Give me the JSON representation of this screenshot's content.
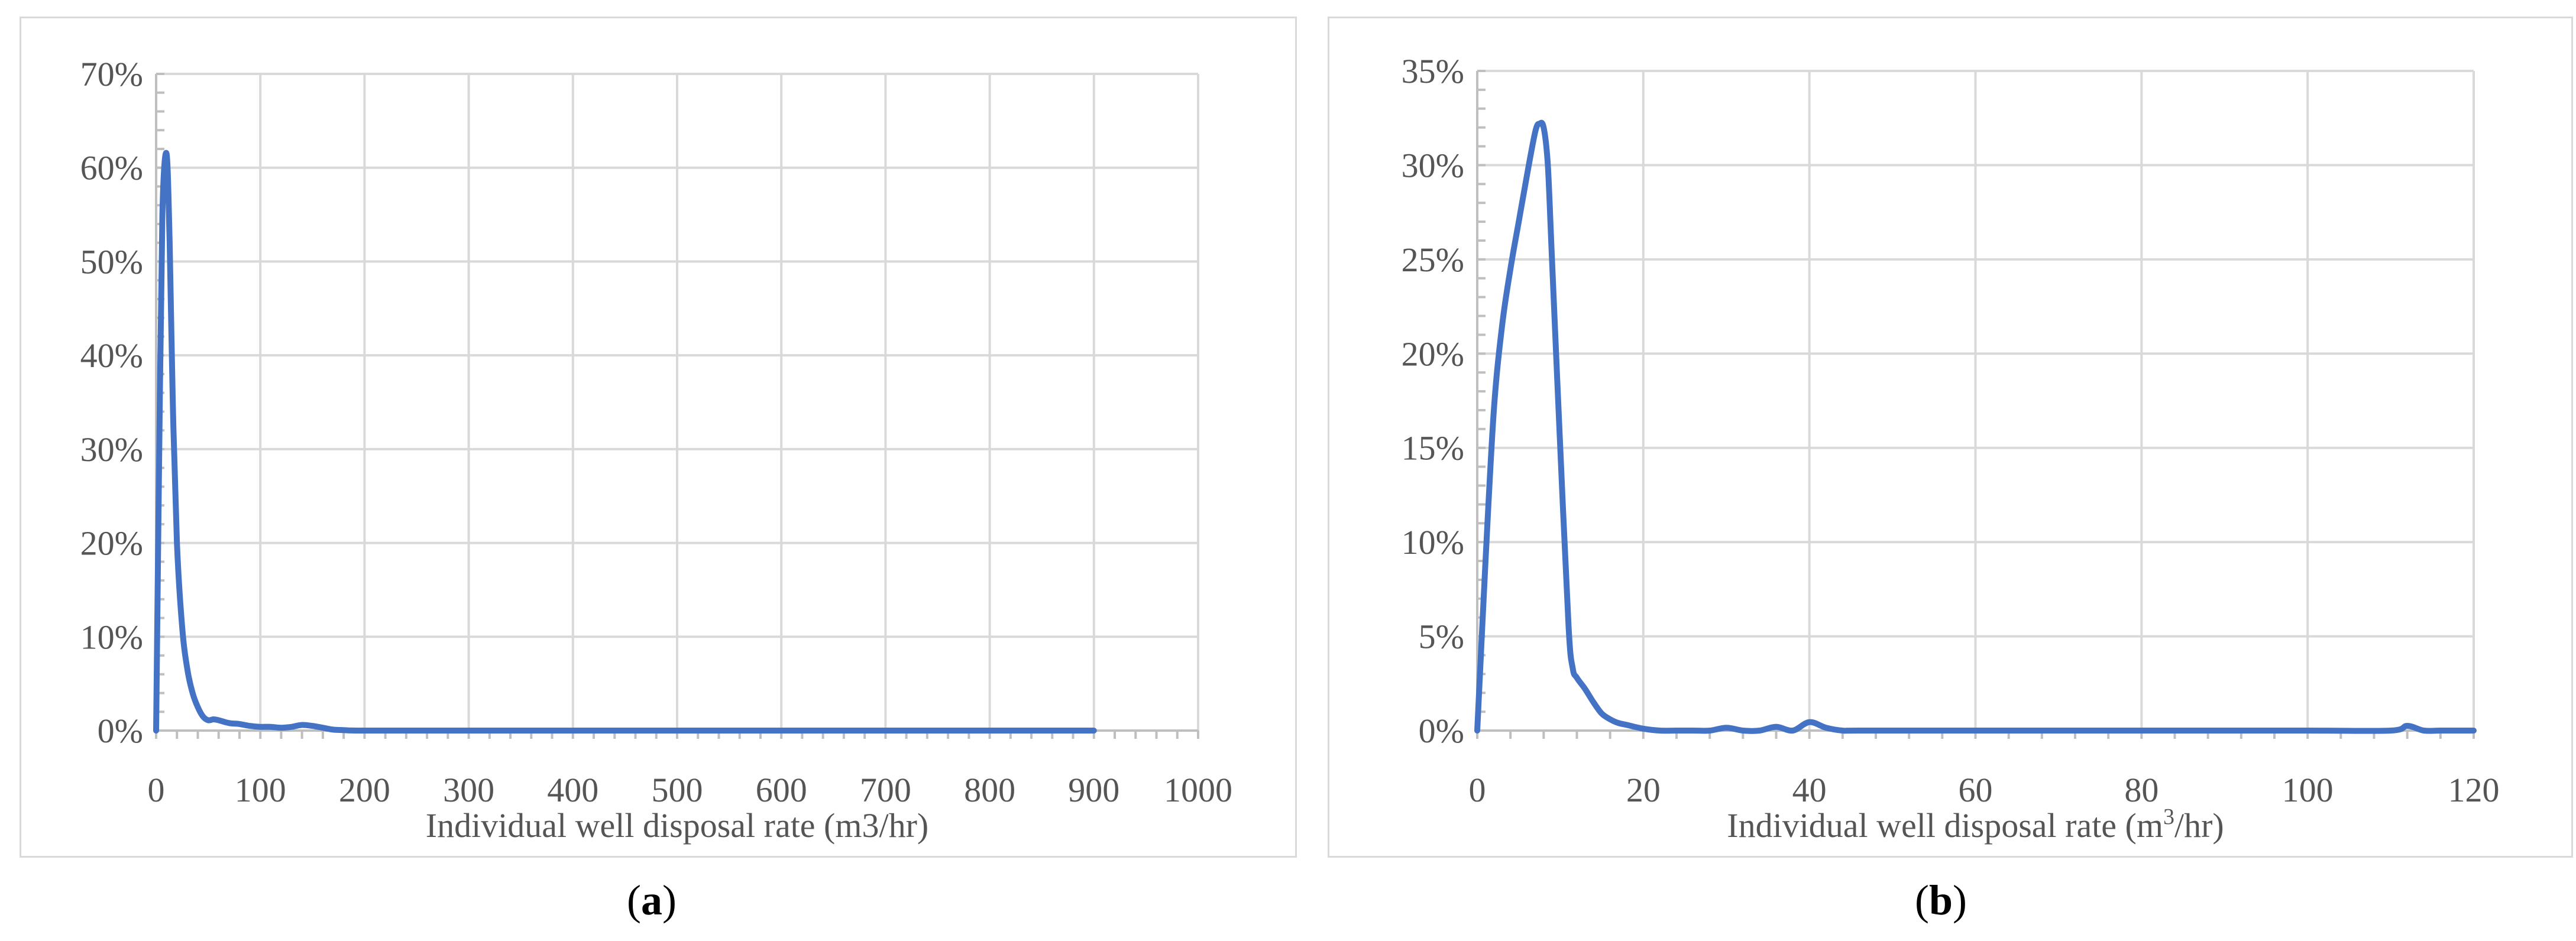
{
  "captions": [
    {
      "open": "(",
      "letter": "a",
      "close": ")"
    },
    {
      "open": "(",
      "letter": "b",
      "close": ")"
    }
  ],
  "chart_data": [
    {
      "type": "line",
      "title": "",
      "xlabel": "Individual well disposal rate (m3/hr)",
      "ylabel": "",
      "xlim": [
        0,
        1000
      ],
      "ylim": [
        0,
        0.7
      ],
      "x_ticks": [
        "0",
        "100",
        "200",
        "300",
        "400",
        "500",
        "600",
        "700",
        "800",
        "900",
        "1000"
      ],
      "y_ticks": [
        "0%",
        "10%",
        "20%",
        "30%",
        "40%",
        "50%",
        "60%",
        "70%"
      ],
      "grid": true,
      "line_color": "#4472c4",
      "series": [
        {
          "x": [
            0,
            3,
            6,
            10,
            13,
            16,
            20,
            25,
            30,
            35,
            40,
            45,
            50,
            55,
            60,
            70,
            80,
            90,
            100,
            110,
            120,
            130,
            140,
            150,
            160,
            170,
            180,
            200,
            300,
            400,
            500,
            600,
            700,
            800,
            900
          ],
          "y": [
            0,
            0.3,
            0.55,
            0.615,
            0.52,
            0.35,
            0.2,
            0.11,
            0.065,
            0.04,
            0.025,
            0.015,
            0.011,
            0.012,
            0.011,
            0.008,
            0.007,
            0.005,
            0.004,
            0.004,
            0.003,
            0.004,
            0.006,
            0.005,
            0.003,
            0.001,
            0.0005,
            0,
            0,
            0,
            0,
            0,
            0,
            0,
            0
          ]
        }
      ]
    },
    {
      "type": "line",
      "title": "",
      "xlabel": "Individual well disposal rate (m",
      "xlabel_sup": "3",
      "xlabel_end": "/hr)",
      "ylabel": "",
      "xlim": [
        0,
        120
      ],
      "ylim": [
        0,
        0.35
      ],
      "x_ticks": [
        "0",
        "20",
        "40",
        "60",
        "80",
        "100",
        "120"
      ],
      "y_ticks": [
        "0%",
        "5%",
        "10%",
        "15%",
        "20%",
        "25%",
        "30%",
        "35%"
      ],
      "grid": true,
      "line_color": "#4472c4",
      "series": [
        {
          "x": [
            0,
            1,
            2,
            3,
            4,
            5,
            6,
            7,
            7.5,
            8,
            8.5,
            9,
            10,
            11,
            11.5,
            12,
            13,
            14,
            15,
            16,
            17,
            18,
            20,
            22,
            24,
            26,
            28,
            30,
            32,
            34,
            36,
            38,
            40,
            42,
            44,
            46,
            60,
            80,
            100,
            110,
            112,
            114,
            116,
            120
          ],
          "y": [
            0,
            0.09,
            0.17,
            0.215,
            0.245,
            0.27,
            0.295,
            0.318,
            0.322,
            0.32,
            0.3,
            0.25,
            0.15,
            0.055,
            0.033,
            0.028,
            0.022,
            0.015,
            0.009,
            0.006,
            0.004,
            0.003,
            0.001,
            0,
            0,
            0,
            0,
            0.0015,
            0,
            0,
            0.002,
            0,
            0.0045,
            0.0015,
            0,
            0,
            0,
            0,
            0,
            0,
            0.0025,
            0,
            0,
            0
          ]
        }
      ]
    }
  ]
}
